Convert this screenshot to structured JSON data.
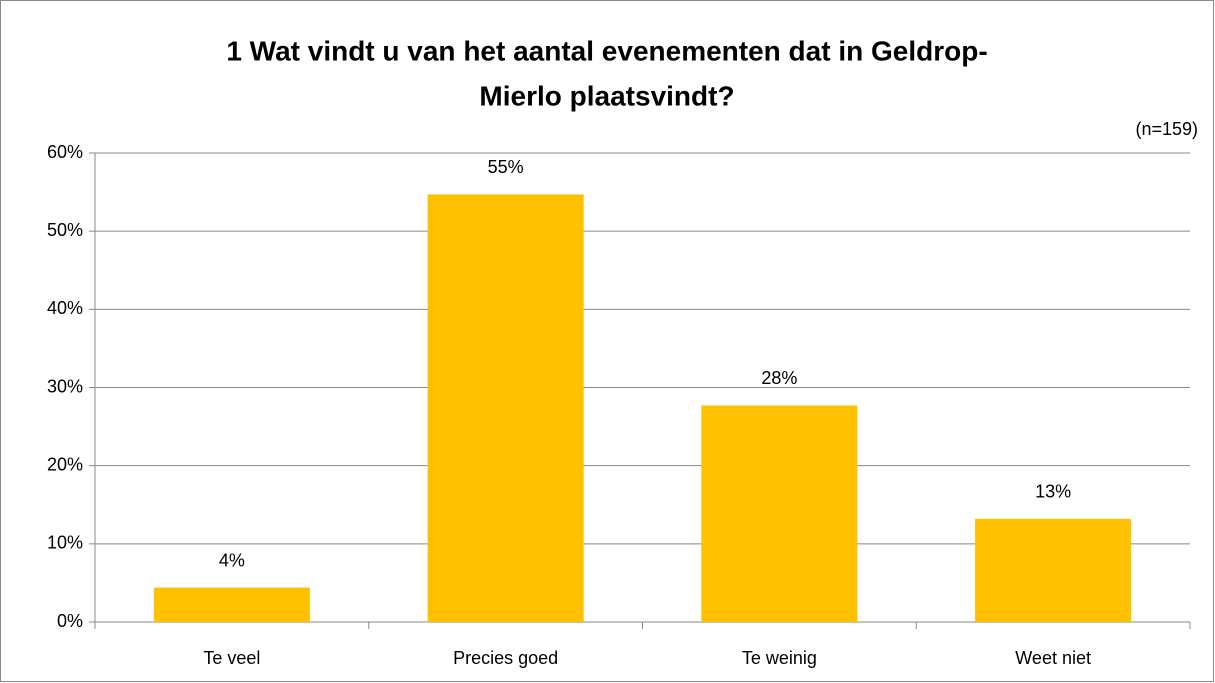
{
  "chart_data": {
    "type": "bar",
    "title": [
      "1 Wat vindt u van het aantal evenementen dat in Geldrop-",
      "Mierlo plaatsvindt?"
    ],
    "annotation": "(n=159)",
    "categories": [
      "Te veel",
      "Precies goed",
      "Te weinig",
      "Weet niet"
    ],
    "values": [
      4.4,
      54.7,
      27.7,
      13.2
    ],
    "value_labels": [
      "4%",
      "55%",
      "28%",
      "13%"
    ],
    "color": "#ffc000",
    "ylim": [
      0,
      60
    ],
    "yticks": [
      {
        "value": 0,
        "label": "0%"
      },
      {
        "value": 10,
        "label": "10%"
      },
      {
        "value": 20,
        "label": "20%"
      },
      {
        "value": 30,
        "label": "30%"
      },
      {
        "value": 40,
        "label": "40%"
      },
      {
        "value": 50,
        "label": "50%"
      },
      {
        "value": 60,
        "label": "60%"
      }
    ],
    "grid": true
  }
}
